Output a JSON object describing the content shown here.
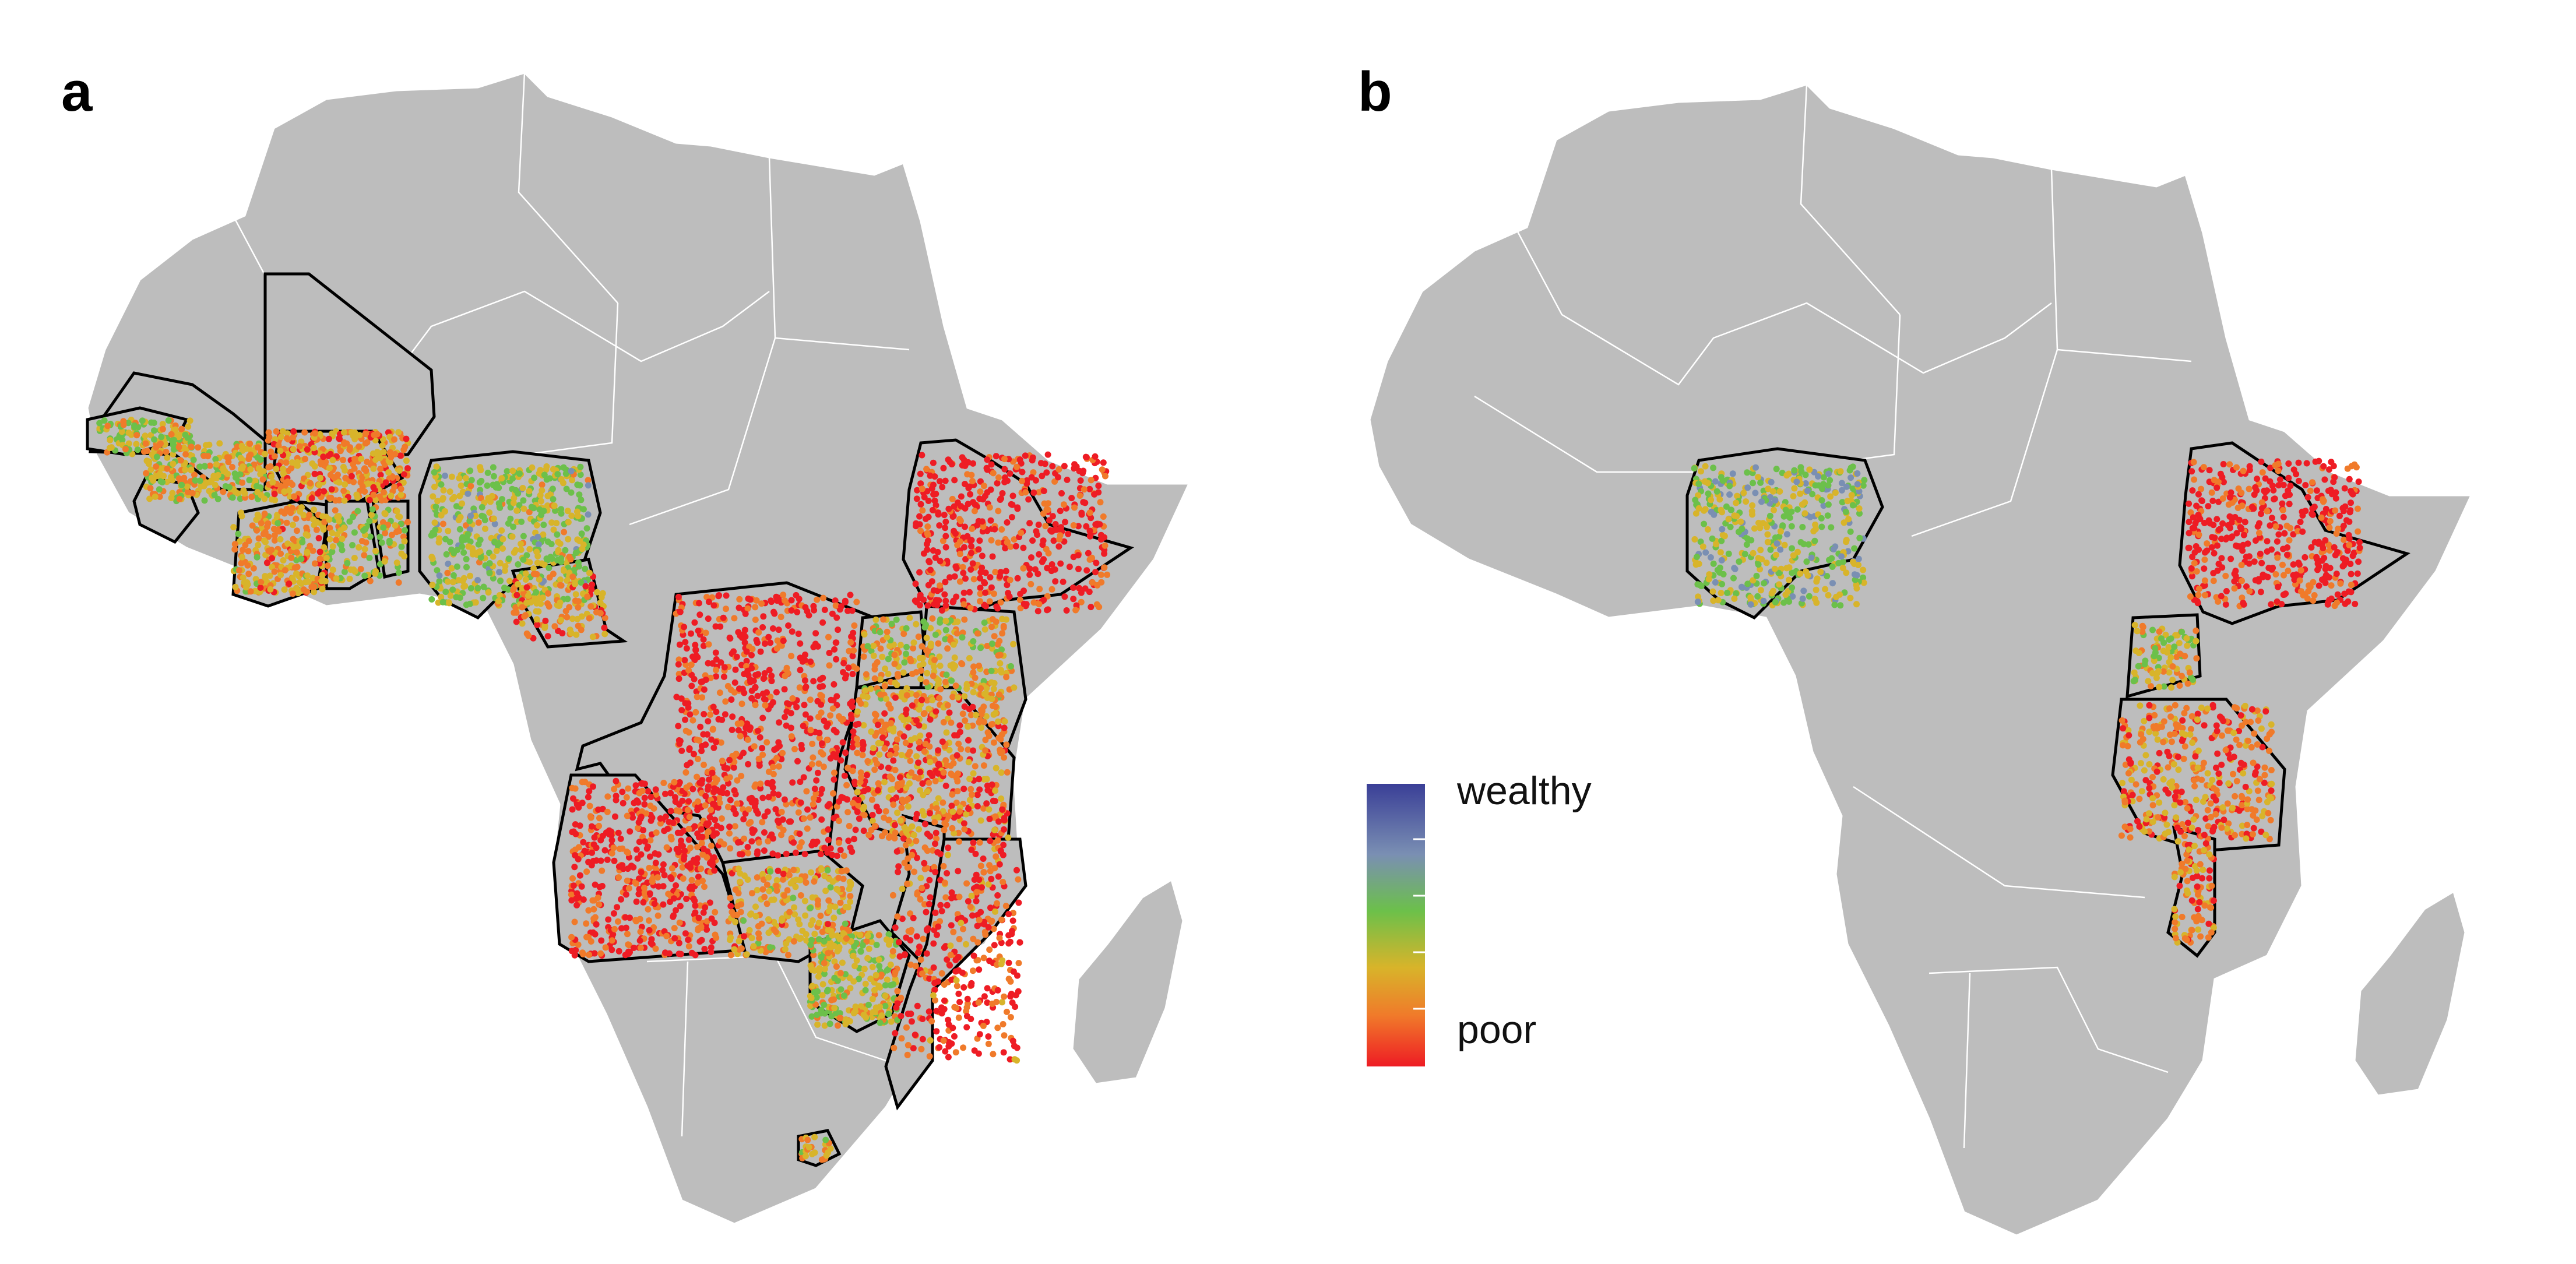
{
  "panels": [
    {
      "label": "a",
      "dot_count": 5200
    },
    {
      "label": "b",
      "dot_count": 1500
    }
  ],
  "legend": {
    "top_label": "wealthy",
    "bottom_label": "poor",
    "gradient_colors": [
      "#3a3f97",
      "#7a8fb3",
      "#6cc04a",
      "#d8b42a",
      "#f07a2a",
      "#ee1c24"
    ]
  },
  "colors": {
    "land": "#bdbdbd",
    "country_border": "#ffffff",
    "survey_outline": "#000000"
  }
}
